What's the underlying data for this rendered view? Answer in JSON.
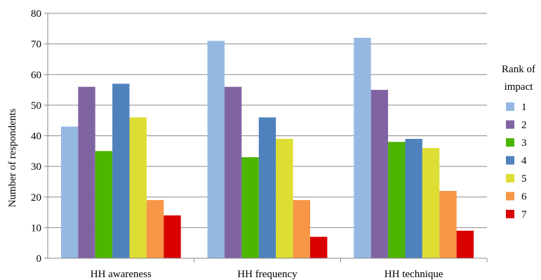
{
  "chart_data": {
    "type": "bar",
    "categories": [
      "HH awareness",
      "HH frequency",
      "HH technique"
    ],
    "ylabel": "Number of respondents",
    "xlabel": "",
    "ylim": [
      0,
      80
    ],
    "yticks": [
      0,
      10,
      20,
      30,
      40,
      50,
      60,
      70,
      80
    ],
    "grid": true,
    "legend": {
      "title_line1": "Rank of",
      "title_line2": "impact",
      "placement": "right"
    },
    "series": [
      {
        "name": "1",
        "color": "#95B8E3",
        "values": [
          43,
          71,
          72
        ]
      },
      {
        "name": "2",
        "color": "#8064A2",
        "values": [
          56,
          56,
          55
        ]
      },
      {
        "name": "3",
        "color": "#4DB400",
        "values": [
          35,
          33,
          38
        ]
      },
      {
        "name": "4",
        "color": "#4F81BD",
        "values": [
          57,
          46,
          39
        ]
      },
      {
        "name": "5",
        "color": "#DDDD33",
        "values": [
          46,
          39,
          36
        ]
      },
      {
        "name": "6",
        "color": "#F79646",
        "values": [
          19,
          19,
          22
        ]
      },
      {
        "name": "7",
        "color": "#D90000",
        "values": [
          14,
          7,
          9
        ]
      }
    ]
  }
}
